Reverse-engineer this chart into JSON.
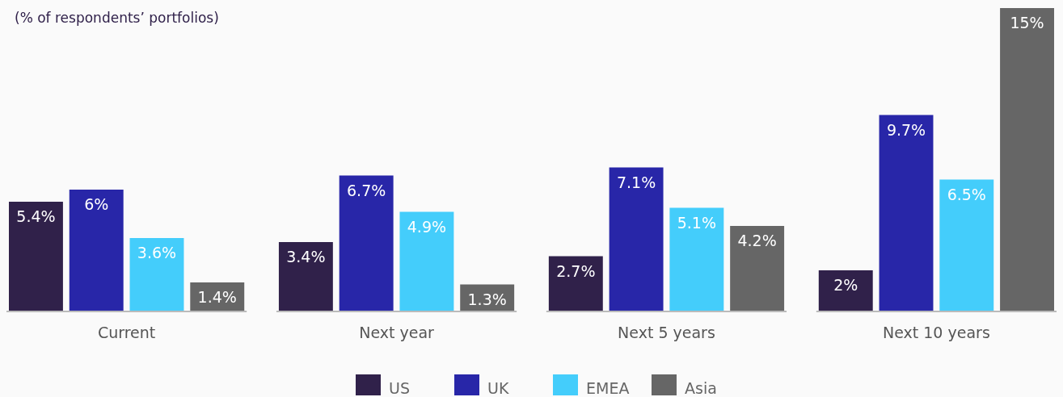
{
  "chart_data": {
    "type": "bar",
    "subtitle": "(% of respondents’ portfolios)",
    "categories": [
      "Current",
      "Next year",
      "Next 5 years",
      "Next 10 years"
    ],
    "series": [
      {
        "name": "US",
        "color": "#30214a",
        "values": [
          5.4,
          3.4,
          2.7,
          2
        ],
        "value_labels": [
          "5.4%",
          "3.4%",
          "2.7%",
          "2%"
        ]
      },
      {
        "name": "UK",
        "color": "#2826a8",
        "values": [
          6,
          6.7,
          7.1,
          9.7
        ],
        "value_labels": [
          "6%",
          "6.7%",
          "7.1%",
          "9.7%"
        ]
      },
      {
        "name": "EMEA",
        "color": "#44cdfb",
        "values": [
          3.6,
          4.9,
          5.1,
          6.5
        ],
        "value_labels": [
          "3.6%",
          "4.9%",
          "5.1%",
          "6.5%"
        ]
      },
      {
        "name": "Asia",
        "color": "#666666",
        "values": [
          1.4,
          1.3,
          4.2,
          15
        ],
        "value_labels": [
          "1.4%",
          "1.3%",
          "4.2%",
          "15%"
        ]
      }
    ],
    "legend": "bottom"
  }
}
